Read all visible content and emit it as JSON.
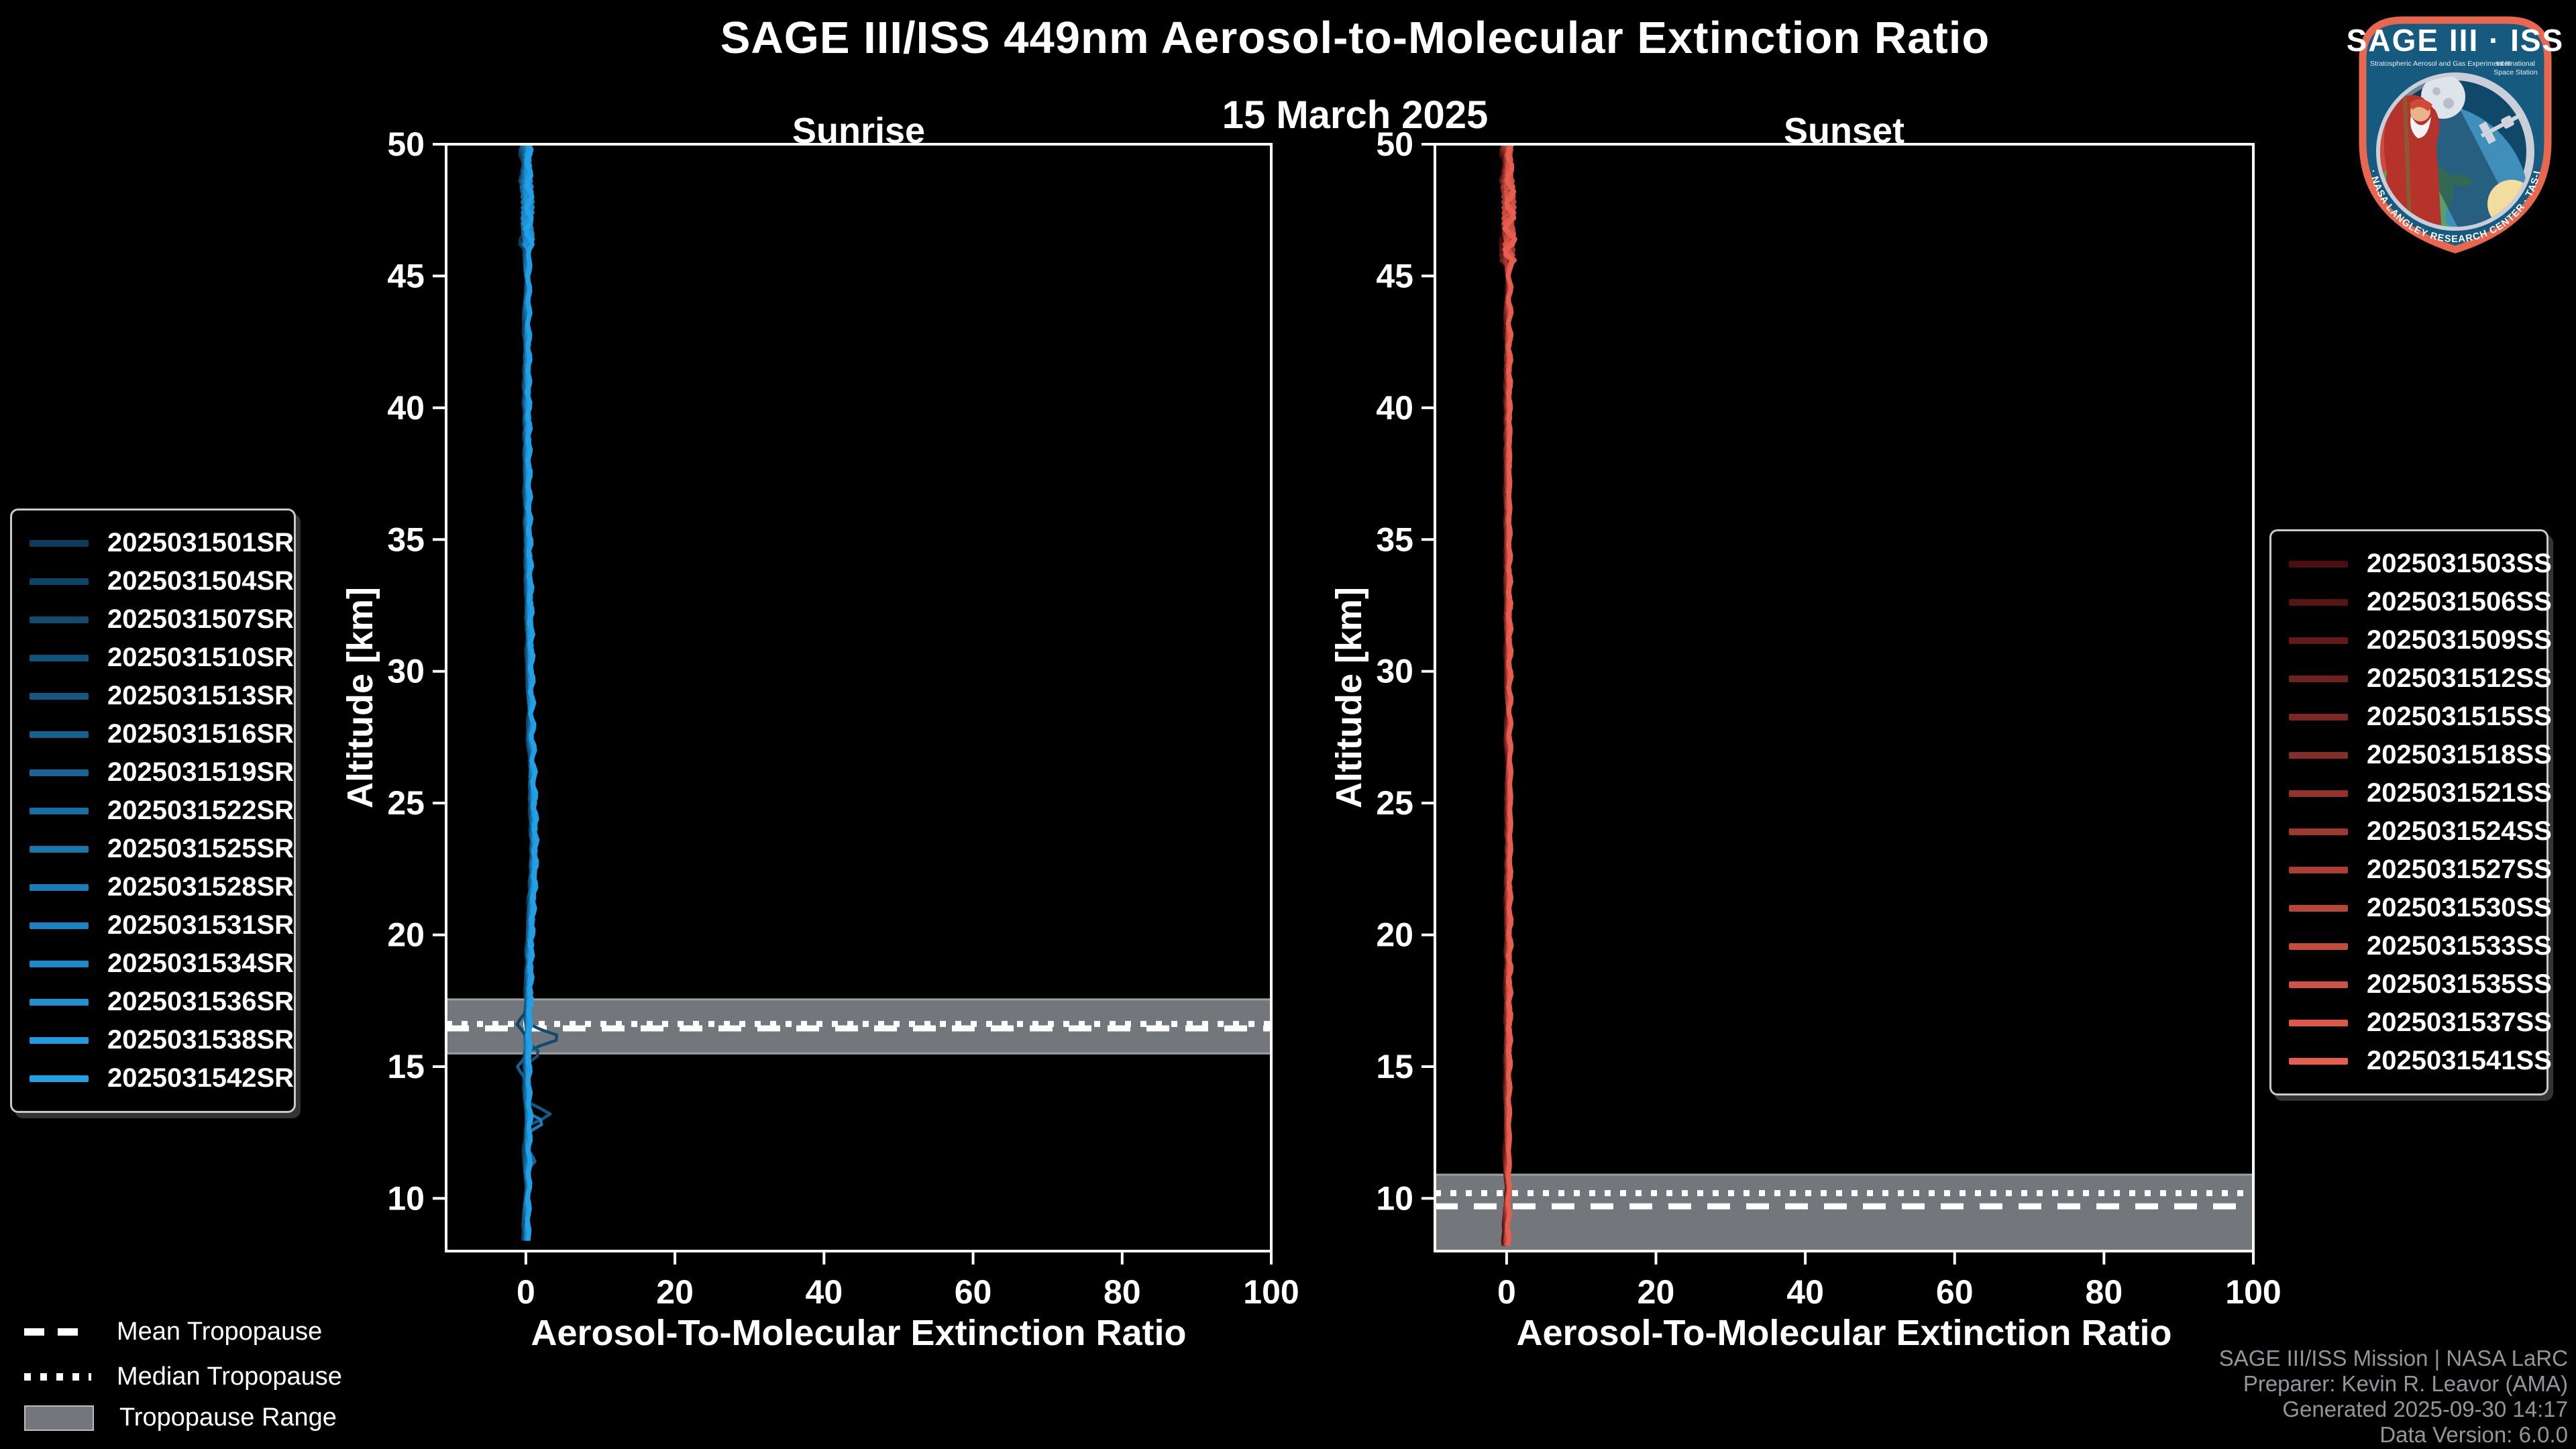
{
  "title": "SAGE III/ISS 449nm Aerosol-to-Molecular Extinction Ratio",
  "subtitle": "15 March 2025",
  "colors": {
    "background": "#000000",
    "axis": "#ffffff",
    "band_fill": "#73777c",
    "band_edge": "#9ba0a6",
    "tropopause_line": "#ffffff",
    "credits_text": "#939699",
    "legend_border": "#c9c9c9",
    "logo_border": "#e8674f",
    "logo_bg": "#175a80",
    "logo_ring": "#c9cfd8"
  },
  "tropopause_legend": {
    "mean_label": "Mean Tropopause",
    "median_label": "Median Tropopause",
    "range_label": "Tropopause Range"
  },
  "credits": {
    "lines": [
      "SAGE III/ISS Mission | NASA LaRC",
      "Preparer: Kevin R. Leavor (AMA)",
      "Generated 2025-09-30 14:17",
      "Data Version: 6.0.0"
    ]
  },
  "logo": {
    "title": "SAGE III · ISS",
    "subtitle": "Stratospheric Aerosol and Gas Experiment III",
    "intl1": "International",
    "intl2": "Space Station",
    "ring_text": "BALL · NASA LANGLEY RESEARCH CENTER · TAS-I · ESA"
  },
  "chart_data": [
    {
      "type": "line",
      "title": "Sunrise",
      "xlabel": "Aerosol-To-Molecular Extinction Ratio",
      "ylabel": "Altitude [km]",
      "xlim": [
        -10.7,
        100
      ],
      "ylim": [
        8,
        50
      ],
      "xticks": [
        0,
        20,
        40,
        60,
        80,
        100
      ],
      "yticks": [
        50,
        45,
        40,
        35,
        30,
        25,
        20,
        15,
        10
      ],
      "grid": false,
      "legend_position": "outside-left",
      "tropopause": {
        "mean_km": 16.45,
        "median_km": 16.62,
        "range_km": [
          15.5,
          17.55
        ]
      },
      "series": [
        {
          "label": "2025031501SR",
          "color": "#0d3d5c"
        },
        {
          "label": "2025031504SR",
          "color": "#0e4466"
        },
        {
          "label": "2025031507SR",
          "color": "#104b70"
        },
        {
          "label": "2025031510SR",
          "color": "#11527a"
        },
        {
          "label": "2025031513SR",
          "color": "#135984"
        },
        {
          "label": "2025031516SR",
          "color": "#14608e"
        },
        {
          "label": "2025031519SR",
          "color": "#166798"
        },
        {
          "label": "2025031522SR",
          "color": "#176ea2"
        },
        {
          "label": "2025031525SR",
          "color": "#1876ac"
        },
        {
          "label": "2025031528SR",
          "color": "#1a7db6"
        },
        {
          "label": "2025031531SR",
          "color": "#1b84c0"
        },
        {
          "label": "2025031534SR",
          "color": "#1d8bca"
        },
        {
          "label": "2025031536SR",
          "color": "#1e92d4"
        },
        {
          "label": "2025031538SR",
          "color": "#2099de"
        },
        {
          "label": "2025031542SR",
          "color": "#21a0e8"
        }
      ],
      "profile": {
        "anchors": [
          [
            50,
            0.15
          ],
          [
            49,
            0.1
          ],
          [
            48,
            0.2
          ],
          [
            47,
            0.1
          ],
          [
            46,
            0.2
          ],
          [
            45,
            0.12
          ],
          [
            44,
            0.15
          ],
          [
            43,
            0.1
          ],
          [
            42,
            0.15
          ],
          [
            41,
            0.1
          ],
          [
            40,
            0.12
          ],
          [
            39,
            0.14
          ],
          [
            38,
            0.15
          ],
          [
            37,
            0.18
          ],
          [
            36,
            0.2
          ],
          [
            35,
            0.25
          ],
          [
            34,
            0.3
          ],
          [
            33,
            0.35
          ],
          [
            32,
            0.4
          ],
          [
            31,
            0.45
          ],
          [
            30,
            0.5
          ],
          [
            29,
            0.55
          ],
          [
            28,
            0.6
          ],
          [
            27,
            0.7
          ],
          [
            26,
            0.8
          ],
          [
            25,
            0.9
          ],
          [
            24,
            1.0
          ],
          [
            23,
            1.0
          ],
          [
            22,
            0.9
          ],
          [
            21,
            0.7
          ],
          [
            20,
            0.5
          ],
          [
            19,
            0.4
          ],
          [
            18,
            0.35
          ],
          [
            17,
            0.25
          ],
          [
            16,
            0.15
          ],
          [
            15,
            0.15
          ],
          [
            14,
            0.15
          ],
          [
            13,
            0.3
          ],
          [
            12,
            0.15
          ],
          [
            11,
            0.2
          ],
          [
            10,
            0.1
          ],
          [
            9,
            0.05
          ],
          [
            8.3,
            0.05
          ]
        ],
        "jitter": {
          "top_alt": 46,
          "top_amp": 0.5,
          "base_amp": 0.16
        }
      },
      "spikes": [
        {
          "series": 2,
          "alt": 16.1,
          "peak": 4.6,
          "sigma": 0.35
        },
        {
          "series": 3,
          "alt": 15.5,
          "peak": 2.0,
          "sigma": 0.3
        },
        {
          "series": 4,
          "alt": 13.2,
          "peak": 3.2,
          "sigma": 0.3
        },
        {
          "series": 9,
          "alt": 12.9,
          "peak": 1.8,
          "sigma": 0.25
        },
        {
          "series": 6,
          "alt": 11.4,
          "peak": 1.2,
          "sigma": 0.25
        },
        {
          "series": 1,
          "alt": 16.6,
          "peak": -1.0,
          "sigma": 0.25
        },
        {
          "series": 5,
          "alt": 15.0,
          "peak": -1.2,
          "sigma": 0.3
        }
      ]
    },
    {
      "type": "line",
      "title": "Sunset",
      "xlabel": "Aerosol-To-Molecular Extinction Ratio",
      "ylabel": "Altitude [km]",
      "xlim": [
        -9.6,
        100
      ],
      "ylim": [
        8,
        50
      ],
      "xticks": [
        0,
        20,
        40,
        60,
        80,
        100
      ],
      "yticks": [
        50,
        45,
        40,
        35,
        30,
        25,
        20,
        15,
        10
      ],
      "grid": false,
      "legend_position": "outside-right",
      "tropopause": {
        "mean_km": 9.7,
        "median_km": 10.2,
        "range_km": [
          8.0,
          10.9
        ]
      },
      "series": [
        {
          "label": "2025031503SS",
          "color": "#4a0e0e"
        },
        {
          "label": "2025031506SS",
          "color": "#561413"
        },
        {
          "label": "2025031509SS",
          "color": "#621a18"
        },
        {
          "label": "2025031512SS",
          "color": "#6e211d"
        },
        {
          "label": "2025031515SS",
          "color": "#7b2722"
        },
        {
          "label": "2025031518SS",
          "color": "#872d27"
        },
        {
          "label": "2025031521SS",
          "color": "#93332c"
        },
        {
          "label": "2025031524SS",
          "color": "#9f3930"
        },
        {
          "label": "2025031527SS",
          "color": "#ab3f35"
        },
        {
          "label": "2025031530SS",
          "color": "#b7453a"
        },
        {
          "label": "2025031533SS",
          "color": "#c44c3f"
        },
        {
          "label": "2025031535SS",
          "color": "#d05244"
        },
        {
          "label": "2025031537SS",
          "color": "#dc5849"
        },
        {
          "label": "2025031541SS",
          "color": "#e85e4e"
        }
      ],
      "profile": {
        "anchors": [
          [
            50,
            0.2
          ],
          [
            49,
            0.15
          ],
          [
            48,
            0.25
          ],
          [
            47,
            0.15
          ],
          [
            46,
            0.2
          ],
          [
            45,
            0.15
          ],
          [
            44,
            0.18
          ],
          [
            42,
            0.15
          ],
          [
            40,
            0.15
          ],
          [
            38,
            0.12
          ],
          [
            36,
            0.12
          ],
          [
            34,
            0.15
          ],
          [
            32,
            0.15
          ],
          [
            30,
            0.2
          ],
          [
            28,
            0.2
          ],
          [
            26,
            0.25
          ],
          [
            24,
            0.25
          ],
          [
            22,
            0.2
          ],
          [
            20,
            0.2
          ],
          [
            18,
            0.15
          ],
          [
            16,
            0.15
          ],
          [
            14,
            0.1
          ],
          [
            12,
            0.08
          ],
          [
            10,
            0.05
          ],
          [
            8.1,
            -0.1
          ]
        ],
        "jitter": {
          "top_alt": 45.5,
          "top_amp": 0.55,
          "base_amp": 0.14
        }
      },
      "spikes": []
    }
  ]
}
